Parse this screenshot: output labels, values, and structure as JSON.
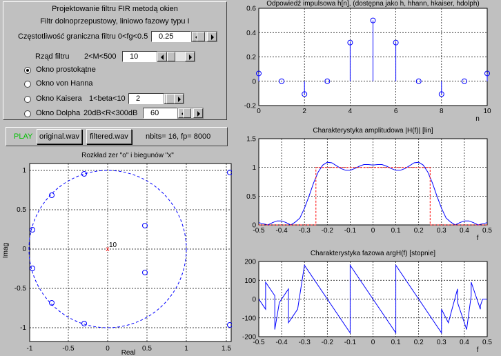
{
  "colors": {
    "background": "#c0c0c0",
    "plot": "#ffffff",
    "series": "#0000ff",
    "ideal": "#ff0000",
    "play": "#00c000"
  },
  "controls": {
    "title": "Projektowanie filtru FIR metodą okien",
    "subtitle": "Filtr dolnoprzepustowy, liniowo fazowy typu I",
    "cutoff_label": "Częstotliwość graniczna filtru 0<fg<0.5",
    "cutoff_value": "0.25",
    "order_label": "Rząd filtru",
    "order_range": "2<M<500",
    "order_value": "10",
    "windows": [
      {
        "label": "Okno prostokątne",
        "selected": true
      },
      {
        "label": "Okno von Hanna",
        "selected": false
      },
      {
        "label": "Okno Kaisera",
        "extra": "1<beta<10",
        "value": "2",
        "selected": false
      },
      {
        "label": "Okno Dolpha",
        "extra": "20dB<R<300dB",
        "value": "60",
        "selected": false
      }
    ]
  },
  "audio": {
    "play_label": "PLAY",
    "original_label": "original.wav",
    "filtered_label": "filtered.wav",
    "info": "nbits= 16,  fp= 8000"
  },
  "zplane": {
    "title": "Rozkład zer \"o\" i biegunów \"x\"",
    "xlabel": "Real",
    "ylabel": "Imag",
    "pole_multiplicity": "10",
    "xticks": [
      "-1",
      "-0.5",
      "0",
      "0.5",
      "1",
      "1.5"
    ],
    "yticks": [
      "1",
      "0.5",
      "0",
      "-0.5",
      "-1"
    ]
  },
  "chart_data": [
    {
      "type": "scatter",
      "title": "Odpowiedź impulsowa h[n], (dostępna jako h, hhann, hkaiser, hdolph)",
      "xlabel": "n",
      "x": [
        0,
        1,
        2,
        3,
        4,
        5,
        6,
        7,
        8,
        9,
        10
      ],
      "series": [
        {
          "values": [
            0.064,
            0,
            -0.106,
            0,
            0.318,
            0.5,
            0.318,
            0,
            -0.106,
            0,
            0.064
          ]
        }
      ],
      "xlim": [
        0,
        10
      ],
      "ylim": [
        -0.2,
        0.6
      ],
      "xticks": [
        "0",
        "2",
        "4",
        "6",
        "8",
        "10"
      ],
      "yticks": [
        "0.6",
        "0.4",
        "0.2",
        "0",
        "-0.2"
      ],
      "grid": true
    },
    {
      "type": "line",
      "title": "Charakterystyka amplitudowa |H(f)| [lin]",
      "xlabel": "f",
      "x": [
        -0.5,
        -0.48,
        -0.46,
        -0.44,
        -0.42,
        -0.4,
        -0.38,
        -0.36,
        -0.34,
        -0.32,
        -0.3,
        -0.28,
        -0.26,
        -0.24,
        -0.22,
        -0.2,
        -0.18,
        -0.16,
        -0.14,
        -0.12,
        -0.1,
        -0.08,
        -0.06,
        -0.04,
        -0.02,
        0,
        0.02,
        0.04,
        0.06,
        0.08,
        0.1,
        0.12,
        0.14,
        0.16,
        0.18,
        0.2,
        0.22,
        0.24,
        0.26,
        0.28,
        0.3,
        0.32,
        0.34,
        0.36,
        0.38,
        0.4,
        0.42,
        0.44,
        0.46,
        0.48,
        0.5
      ],
      "series": [
        {
          "values": [
            0.04,
            0.02,
            0.0,
            0.04,
            0.07,
            0.07,
            0.04,
            0.0,
            0.05,
            0.12,
            0.29,
            0.5,
            0.73,
            0.92,
            1.04,
            1.09,
            1.08,
            1.03,
            0.98,
            0.95,
            0.95,
            0.98,
            1.02,
            1.05,
            1.05,
            1.04,
            1.05,
            1.05,
            1.02,
            0.98,
            0.95,
            0.95,
            0.98,
            1.03,
            1.08,
            1.09,
            1.04,
            0.92,
            0.73,
            0.5,
            0.29,
            0.12,
            0.05,
            0.0,
            0.04,
            0.07,
            0.07,
            0.04,
            0.0,
            0.02,
            0.04
          ]
        },
        {
          "x": [
            -0.5,
            -0.25,
            -0.25,
            0.25,
            0.25,
            0.5
          ],
          "values": [
            0,
            0,
            1,
            1,
            0,
            0
          ]
        }
      ],
      "xlim": [
        -0.5,
        0.5
      ],
      "ylim": [
        0,
        1.5
      ],
      "xticks": [
        "-0.5",
        "-0.4",
        "-0.3",
        "-0.2",
        "-0.1",
        "0",
        "0.1",
        "0.2",
        "0.3",
        "0.4",
        "0.5"
      ],
      "yticks": [
        "1.5",
        "1",
        "0.5",
        "0"
      ],
      "grid": true
    },
    {
      "type": "line",
      "title": "Charakterystyka fazowa argH(f) [stopnie]",
      "xlabel": "f",
      "x": [
        -0.5,
        -0.48,
        -0.47,
        -0.47,
        -0.43,
        -0.43,
        -0.41,
        -0.37,
        -0.37,
        -0.33,
        -0.3,
        -0.1,
        -0.1,
        0.1,
        0.1,
        0.3,
        0.3,
        0.33,
        0.37,
        0.37,
        0.41,
        0.43,
        0.43,
        0.47,
        0.47,
        0.48,
        0.5
      ],
      "series": [
        {
          "values": [
            0,
            -36,
            -54,
            90,
            18,
            -162,
            -18,
            54,
            -126,
            -54,
            180,
            -180,
            180,
            -180,
            180,
            -180,
            -54,
            -126,
            54,
            -18,
            -162,
            18,
            90,
            -54,
            -36,
            0,
            0
          ]
        }
      ],
      "xlim": [
        -0.5,
        0.5
      ],
      "ylim": [
        -200,
        200
      ],
      "xticks": [
        "-0.5",
        "-0.4",
        "-0.3",
        "-0.2",
        "-0.1",
        "0",
        "0.1",
        "0.2",
        "0.3",
        "0.4",
        "0.5"
      ],
      "yticks": [
        "200",
        "100",
        "0",
        "-100",
        "-200"
      ],
      "grid": true
    }
  ]
}
